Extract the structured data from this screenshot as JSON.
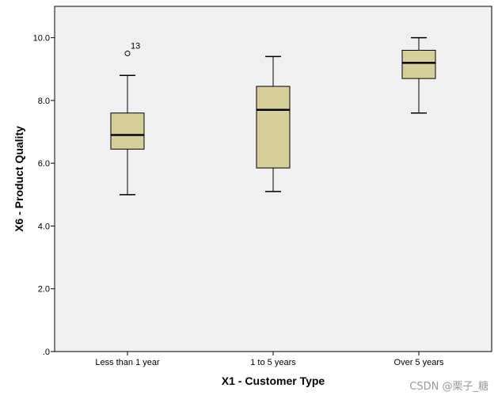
{
  "chart_data": {
    "type": "box",
    "title": "",
    "xlabel": "X1 - Customer Type",
    "ylabel": "X6 - Product Quality",
    "ylim": [
      0,
      11.0
    ],
    "y_ticks": [
      0,
      2,
      4,
      6,
      8,
      10
    ],
    "y_tick_labels": [
      ".0",
      "2.0",
      "4.0",
      "6.0",
      "8.0",
      "10.0"
    ],
    "grid": false,
    "colors": {
      "plot_background": "#f0f0f0",
      "box_fill": "#d5d09b",
      "stroke": "#000000"
    },
    "categories": [
      "Less than 1 year",
      "1 to 5 years",
      "Over 5 years"
    ],
    "boxes": [
      {
        "category": "Less than 1 year",
        "whisker_low": 5.0,
        "q1": 6.45,
        "median": 6.9,
        "q3": 7.6,
        "whisker_high": 8.8,
        "outliers": [
          {
            "value": 9.5,
            "label": "13"
          }
        ]
      },
      {
        "category": "1 to 5 years",
        "whisker_low": 5.1,
        "q1": 5.85,
        "median": 7.7,
        "q3": 8.45,
        "whisker_high": 9.4,
        "outliers": []
      },
      {
        "category": "Over 5 years",
        "whisker_low": 7.6,
        "q1": 8.7,
        "median": 9.2,
        "q3": 9.6,
        "whisker_high": 10.0,
        "outliers": []
      }
    ]
  },
  "watermark": "CSDN @栗子_糖"
}
